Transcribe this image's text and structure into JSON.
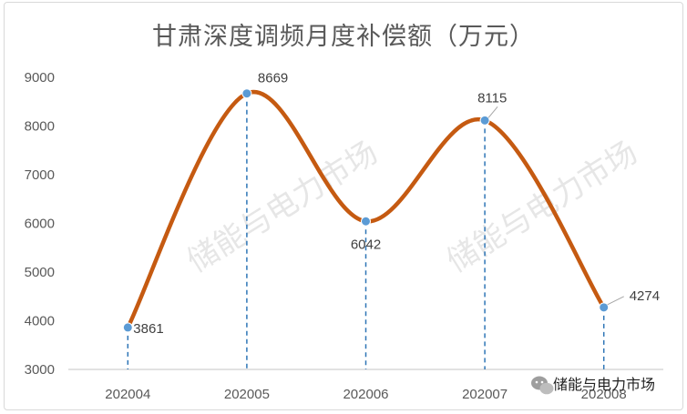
{
  "chart_data": {
    "type": "line",
    "title": "甘肃深度调频月度补偿额（万元）",
    "categories": [
      "202004",
      "202005",
      "202006",
      "202007",
      "202008"
    ],
    "series": [
      {
        "values": [
          3861,
          8669,
          6042,
          8115,
          4274
        ]
      }
    ],
    "data_labels": [
      "3861",
      "8669",
      "6042",
      "8115",
      "4274"
    ],
    "ylim": [
      3000,
      9000
    ],
    "yticks": [
      "3000",
      "4000",
      "5000",
      "6000",
      "7000",
      "8000",
      "9000"
    ],
    "grid": false,
    "smooth": true,
    "drop_lines": true,
    "colors": {
      "line": "#C55A11",
      "marker": "#5B9BD5",
      "drop_line": "#2E75B6",
      "axis": "#d9d9d9"
    }
  },
  "watermark": "储能与电力市场",
  "footer_brand": "储能与电力市场",
  "footer_icon": "wechat-icon"
}
